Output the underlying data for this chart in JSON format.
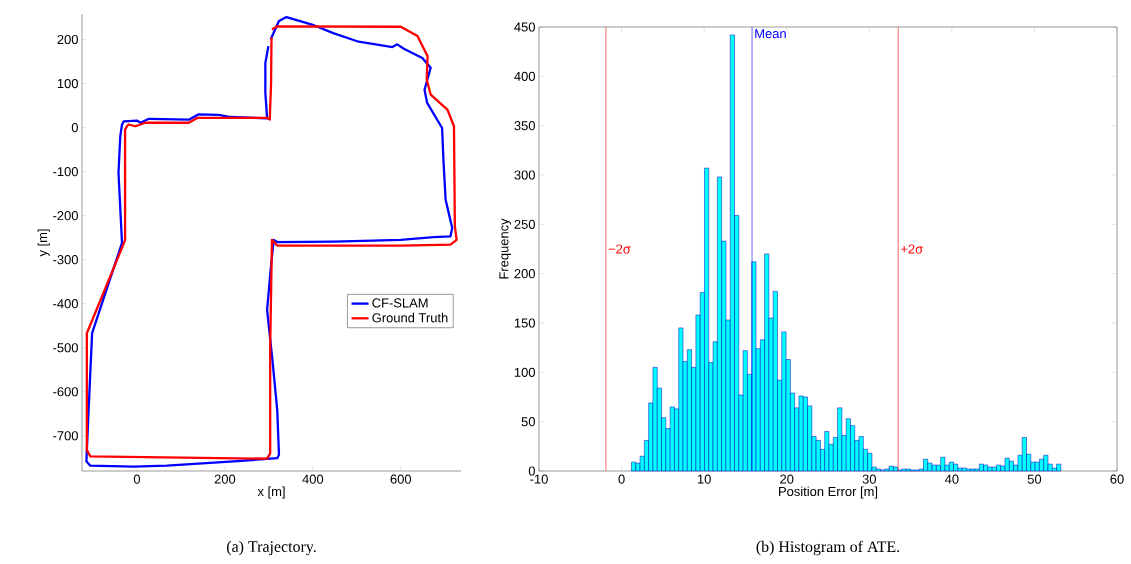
{
  "chart_data": [
    {
      "type": "line",
      "xlabel": "x [m]",
      "ylabel": "y [m]",
      "xlim": [
        -125,
        737
      ],
      "ylim": [
        -780,
        258
      ],
      "xticks": [
        0,
        200,
        400,
        600
      ],
      "yticks": [
        -700,
        -600,
        -500,
        -400,
        -300,
        -200,
        -100,
        0,
        100,
        200
      ],
      "legend": "right",
      "annotations": [
        "(a) Trajectory."
      ],
      "series": [
        {
          "name": "CF-SLAM",
          "color": "#0000ff",
          "x": [
            304,
            323,
            340,
            398,
            448,
            501,
            581,
            592,
            607,
            649,
            668,
            654,
            660,
            694,
            697,
            702,
            717,
            713,
            675,
            600,
            448,
            319,
            311,
            304,
            296,
            308,
            319,
            323,
            319,
            220,
            68,
            -8,
            -106,
            -115,
            -110,
            -102,
            -34,
            -42,
            -38,
            -34,
            -30,
            0,
            8,
            27,
            118,
            140,
            186,
            213,
            296,
            292,
            292,
            299
          ],
          "values": [
            200,
            242,
            251,
            234,
            214,
            196,
            183,
            189,
            179,
            158,
            136,
            86,
            56,
            -1,
            -73,
            -164,
            -228,
            -247,
            -249,
            -255,
            -259,
            -260,
            -255,
            -323,
            -414,
            -527,
            -641,
            -743,
            -751,
            -758,
            -768,
            -770,
            -768,
            -758,
            -641,
            -467,
            -262,
            -103,
            -20,
            7,
            14,
            16,
            11,
            20,
            18,
            30,
            29,
            24,
            21,
            79,
            147,
            185
          ]
        },
        {
          "name": "Ground Truth",
          "color": "#ff0000",
          "x": [
            307,
            319,
            600,
            638,
            661,
            659,
            668,
            706,
            721,
            723,
            727,
            713,
            600,
            319,
            307,
            303,
            303,
            296,
            -106,
            -114,
            -114,
            -34,
            -27,
            -27,
            -23,
            -19,
            -4,
            8,
            19,
            118,
            137,
            296,
            302,
            305,
            306
          ],
          "values": [
            223,
            230,
            229,
            208,
            162,
            109,
            75,
            41,
            3,
            -224,
            -255,
            -266,
            -268,
            -268,
            -255,
            -500,
            -740,
            -752,
            -747,
            -732,
            -467,
            -273,
            -255,
            -5,
            3,
            7,
            3,
            7,
            11,
            11,
            22,
            22,
            18,
            100,
            205
          ]
        }
      ]
    },
    {
      "type": "histogram",
      "xlabel": "Position Error [m]",
      "ylabel": "Frequency",
      "xlim": [
        -10,
        60
      ],
      "ylim": [
        0,
        450
      ],
      "xticks": [
        -10,
        0,
        10,
        20,
        30,
        40,
        50,
        60
      ],
      "yticks": [
        0,
        50,
        100,
        150,
        200,
        250,
        300,
        350,
        400,
        450
      ],
      "color": "#00ffff",
      "annotations": [
        "(b) Histogram of ATE."
      ],
      "bins": [
        1.2,
        1.72,
        2.24,
        2.76,
        3.28,
        3.8,
        4.32,
        4.84,
        5.36,
        5.88,
        6.4,
        6.92,
        7.44,
        7.96,
        8.48,
        9.0,
        9.52,
        10.04,
        10.56,
        11.08,
        11.6,
        12.12,
        12.64,
        13.16,
        13.68,
        14.2,
        14.72,
        15.24,
        15.76,
        16.28,
        16.8,
        17.32,
        17.84,
        18.36,
        18.88,
        19.4,
        19.92,
        20.44,
        20.96,
        21.48,
        22.0,
        22.52,
        23.04,
        23.56,
        24.08,
        24.6,
        25.12,
        25.64,
        26.16,
        26.68,
        27.2,
        27.72,
        28.24,
        28.76,
        29.28,
        29.8,
        30.32,
        30.84,
        31.36,
        31.88,
        32.4,
        32.92,
        33.44,
        33.96,
        34.48,
        35.0,
        35.52,
        36.04,
        36.56,
        37.08,
        37.6,
        38.12,
        38.64,
        39.16,
        39.68,
        40.2,
        40.72,
        41.24,
        41.76,
        42.28,
        42.8,
        43.32,
        43.84,
        44.36,
        44.88,
        45.4,
        45.92,
        46.44,
        46.96,
        47.48,
        48.0,
        48.52,
        49.04,
        49.56,
        50.08,
        50.6,
        51.12,
        51.64,
        52.16,
        52.68,
        53.2
      ],
      "values": [
        9,
        8,
        15,
        31,
        69,
        105,
        84,
        54,
        43,
        65,
        63,
        145,
        111,
        123,
        105,
        158,
        181,
        307,
        110,
        131,
        298,
        233,
        153,
        442,
        259,
        77,
        122,
        98,
        212,
        124,
        133,
        220,
        155,
        182,
        92,
        141,
        113,
        79,
        64,
        76,
        75,
        66,
        35,
        31,
        22,
        40,
        27,
        34,
        64,
        36,
        53,
        46,
        31,
        35,
        22,
        18,
        4,
        2,
        1,
        2,
        5,
        4,
        1,
        2,
        2,
        1,
        1,
        2,
        12,
        8,
        6,
        6,
        14,
        6,
        9,
        7,
        3,
        3,
        2,
        2,
        2,
        7,
        6,
        4,
        4,
        6,
        5,
        13,
        10,
        6,
        16,
        34,
        17,
        9,
        9,
        12,
        16,
        7,
        3,
        7
      ],
      "ref_lines": [
        {
          "axis": "x",
          "value": -1.9,
          "label": "−2σ",
          "color": "#ff0000"
        },
        {
          "axis": "x",
          "value": 15.8,
          "label": "Mean",
          "color": "#0000ff"
        },
        {
          "axis": "x",
          "value": 33.5,
          "label": "+2σ",
          "color": "#ff0000"
        }
      ]
    }
  ]
}
